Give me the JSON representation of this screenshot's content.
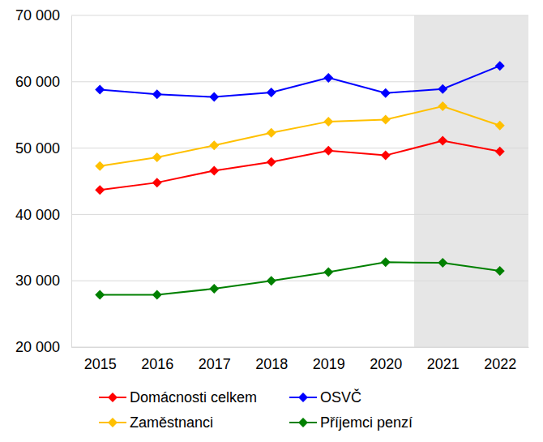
{
  "chart_data": {
    "type": "line",
    "categories": [
      "2015",
      "2016",
      "2017",
      "2018",
      "2019",
      "2020",
      "2021",
      "2022"
    ],
    "series": [
      {
        "name": "Domácnosti celkem",
        "color": "#ff0000",
        "values": [
          43700,
          44800,
          46600,
          47900,
          49600,
          48900,
          51100,
          49500
        ]
      },
      {
        "name": "OSVČ",
        "color": "#0000ff",
        "values": [
          58800,
          58100,
          57700,
          58400,
          60600,
          58300,
          58900,
          62400
        ]
      },
      {
        "name": "Zaměstnanci",
        "color": "#ffc000",
        "values": [
          47300,
          48600,
          50400,
          52300,
          54000,
          54300,
          56300,
          53400
        ]
      },
      {
        "name": "Příjemci penzí",
        "color": "#008000",
        "values": [
          27900,
          27900,
          28800,
          30000,
          31300,
          32800,
          32700,
          31500
        ]
      }
    ],
    "ylim": [
      20000,
      70000
    ],
    "yticks": [
      {
        "value": 20000,
        "label": "20 000"
      },
      {
        "value": 30000,
        "label": "30 000"
      },
      {
        "value": 40000,
        "label": "40 000"
      },
      {
        "value": 50000,
        "label": "50 000"
      },
      {
        "value": 60000,
        "label": "60 000"
      },
      {
        "value": 70000,
        "label": "70 000"
      }
    ],
    "grid": true,
    "legend": "bottom",
    "marker": "diamond",
    "line_style": "solid"
  }
}
